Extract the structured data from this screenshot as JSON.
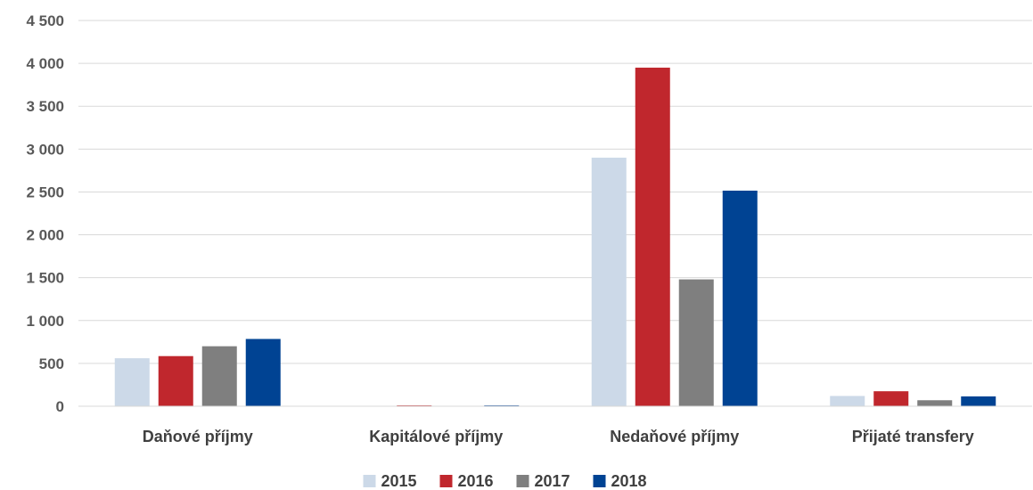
{
  "chart_data": {
    "type": "bar",
    "title": "",
    "xlabel": "",
    "ylabel": "",
    "categories": [
      "Daňové příjmy",
      "Kapitálové příjmy",
      "Nedaňové příjmy",
      "Přijaté transfery"
    ],
    "series": [
      {
        "name": "2015",
        "color": "#ccd9e8",
        "values": [
          560,
          5,
          2900,
          120
        ]
      },
      {
        "name": "2016",
        "color": "#c0272d",
        "values": [
          585,
          10,
          3950,
          175
        ]
      },
      {
        "name": "2017",
        "color": "#7f7f7f",
        "values": [
          700,
          5,
          1480,
          70
        ]
      },
      {
        "name": "2018",
        "color": "#004393",
        "values": [
          785,
          10,
          2515,
          115
        ]
      }
    ],
    "ylim": [
      0,
      4500
    ],
    "yticks": [
      0,
      500,
      1000,
      1500,
      2000,
      2500,
      3000,
      3500,
      4000,
      4500
    ],
    "ytick_labels": [
      "0",
      "500",
      "1 000",
      "1 500",
      "2 000",
      "2 500",
      "3 000",
      "3 500",
      "4 000",
      "4 500"
    ],
    "grid": true,
    "legend_position": "bottom-center"
  }
}
